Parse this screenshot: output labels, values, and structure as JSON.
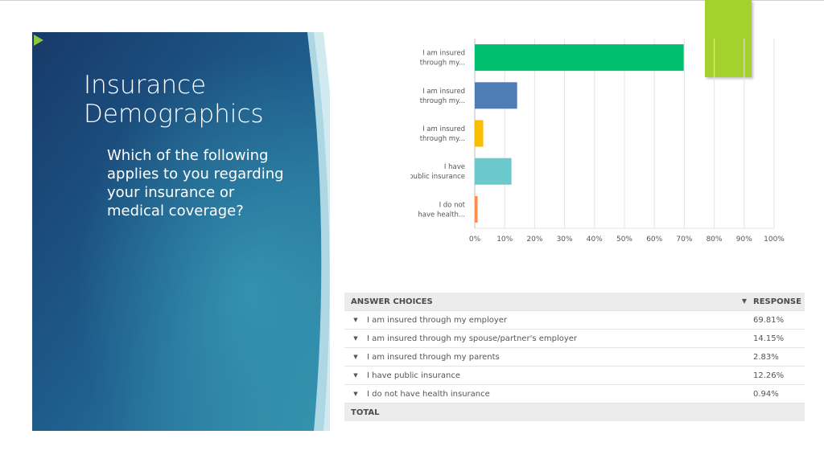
{
  "slide": {
    "title": "Insurance Demographics",
    "bullet": "Which of the following applies to you regarding your insurance or medical coverage?"
  },
  "colors": {
    "panel_dark": "#1b3f6e",
    "panel_light": "#2f86a8",
    "accent_green": "#a5d12e",
    "bullet_arrow": "#8dc63f"
  },
  "chart_data": {
    "type": "bar",
    "orientation": "horizontal",
    "categories": [
      "I am insured through my...",
      "I am insured through my...",
      "I am insured through my...",
      "I have public insurance",
      "I do not have health..."
    ],
    "values": [
      69.81,
      14.15,
      2.83,
      12.26,
      0.94
    ],
    "colors": [
      "#00bf6f",
      "#507cb6",
      "#f9be00",
      "#6bc8cd",
      "#ff8b4f"
    ],
    "xlim": [
      0,
      100
    ],
    "xticks": [
      "0%",
      "10%",
      "20%",
      "30%",
      "40%",
      "50%",
      "60%",
      "70%",
      "80%",
      "90%",
      "100%"
    ],
    "grid": true
  },
  "table": {
    "header_choices": "ANSWER CHOICES",
    "header_responses": "RESPONSE",
    "rows": [
      {
        "choice": "I am insured through my employer",
        "response": "69.81%"
      },
      {
        "choice": "I am insured through my spouse/partner's employer",
        "response": "14.15%"
      },
      {
        "choice": "I am insured through my parents",
        "response": "2.83%"
      },
      {
        "choice": "I have public insurance",
        "response": "12.26%"
      },
      {
        "choice": "I do not have health insurance",
        "response": "0.94%"
      }
    ],
    "total_label": "TOTAL"
  },
  "icons": {
    "row_caret": "caret-down-icon",
    "bullet": "triangle-right-icon"
  }
}
